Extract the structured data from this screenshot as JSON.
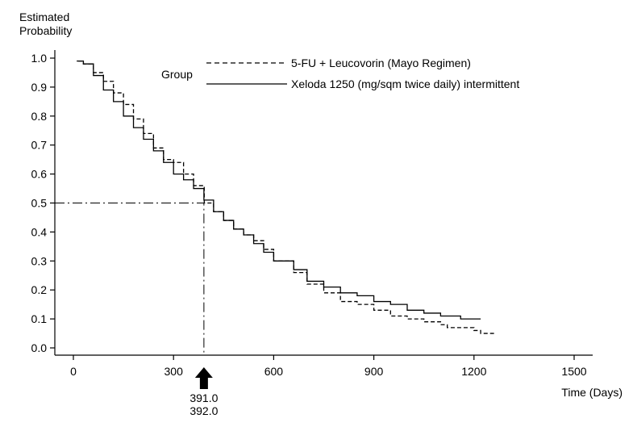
{
  "chart_data": {
    "type": "line",
    "ylabel": "Estimated\nProbability",
    "xlabel": "Time (Days)",
    "xlim": [
      0,
      1500
    ],
    "ylim": [
      0,
      1.0
    ],
    "x_ticks": [
      0,
      300,
      600,
      900,
      1200,
      1500
    ],
    "y_ticks": [
      0.0,
      0.1,
      0.2,
      0.3,
      0.4,
      0.5,
      0.6,
      0.7,
      0.8,
      0.9,
      1.0
    ],
    "x_tick_labels": [
      "0",
      "300",
      "600",
      "900",
      "1200",
      "1500"
    ],
    "y_tick_labels": [
      "0.0",
      "0.1",
      "0.2",
      "0.3",
      "0.4",
      "0.5",
      "0.6",
      "0.7",
      "0.8",
      "0.9",
      "1.0"
    ],
    "legend": {
      "title": "Group",
      "position": "top-right",
      "entries": [
        "5-FU + Leucovorin (Mayo Regimen)",
        "Xeloda 1250 (mg/sqm twice daily) intermittent"
      ]
    },
    "reference": {
      "y": 0.5,
      "x": 391
    },
    "median_labels": [
      "391.0",
      "392.0"
    ],
    "grid": false,
    "series": [
      {
        "name": "5-FU + Leucovorin (Mayo Regimen)",
        "style": "dashed",
        "x": [
          15,
          30,
          60,
          90,
          120,
          150,
          180,
          210,
          240,
          270,
          300,
          330,
          360,
          392,
          420,
          450,
          480,
          510,
          540,
          570,
          600,
          660,
          700,
          750,
          800,
          850,
          900,
          950,
          1000,
          1050,
          1100,
          1120,
          1150,
          1180,
          1200,
          1220,
          1260
        ],
        "y": [
          0.99,
          0.98,
          0.95,
          0.92,
          0.88,
          0.84,
          0.79,
          0.74,
          0.69,
          0.65,
          0.64,
          0.6,
          0.56,
          0.5,
          0.47,
          0.44,
          0.41,
          0.39,
          0.37,
          0.34,
          0.3,
          0.26,
          0.22,
          0.19,
          0.16,
          0.15,
          0.13,
          0.11,
          0.1,
          0.09,
          0.08,
          0.07,
          0.07,
          0.07,
          0.06,
          0.05,
          0.05
        ]
      },
      {
        "name": "Xeloda 1250 (mg/sqm twice daily) intermittent",
        "style": "solid",
        "x": [
          10,
          30,
          60,
          90,
          120,
          150,
          180,
          210,
          240,
          270,
          300,
          330,
          360,
          391,
          420,
          450,
          480,
          510,
          540,
          570,
          600,
          660,
          700,
          750,
          800,
          850,
          900,
          950,
          1000,
          1050,
          1100,
          1150,
          1160,
          1200,
          1220
        ],
        "y": [
          0.99,
          0.98,
          0.94,
          0.89,
          0.85,
          0.8,
          0.76,
          0.72,
          0.68,
          0.64,
          0.6,
          0.58,
          0.55,
          0.51,
          0.47,
          0.44,
          0.41,
          0.39,
          0.36,
          0.33,
          0.3,
          0.27,
          0.23,
          0.21,
          0.19,
          0.18,
          0.16,
          0.15,
          0.13,
          0.12,
          0.11,
          0.11,
          0.1,
          0.1,
          0.1
        ]
      }
    ]
  }
}
